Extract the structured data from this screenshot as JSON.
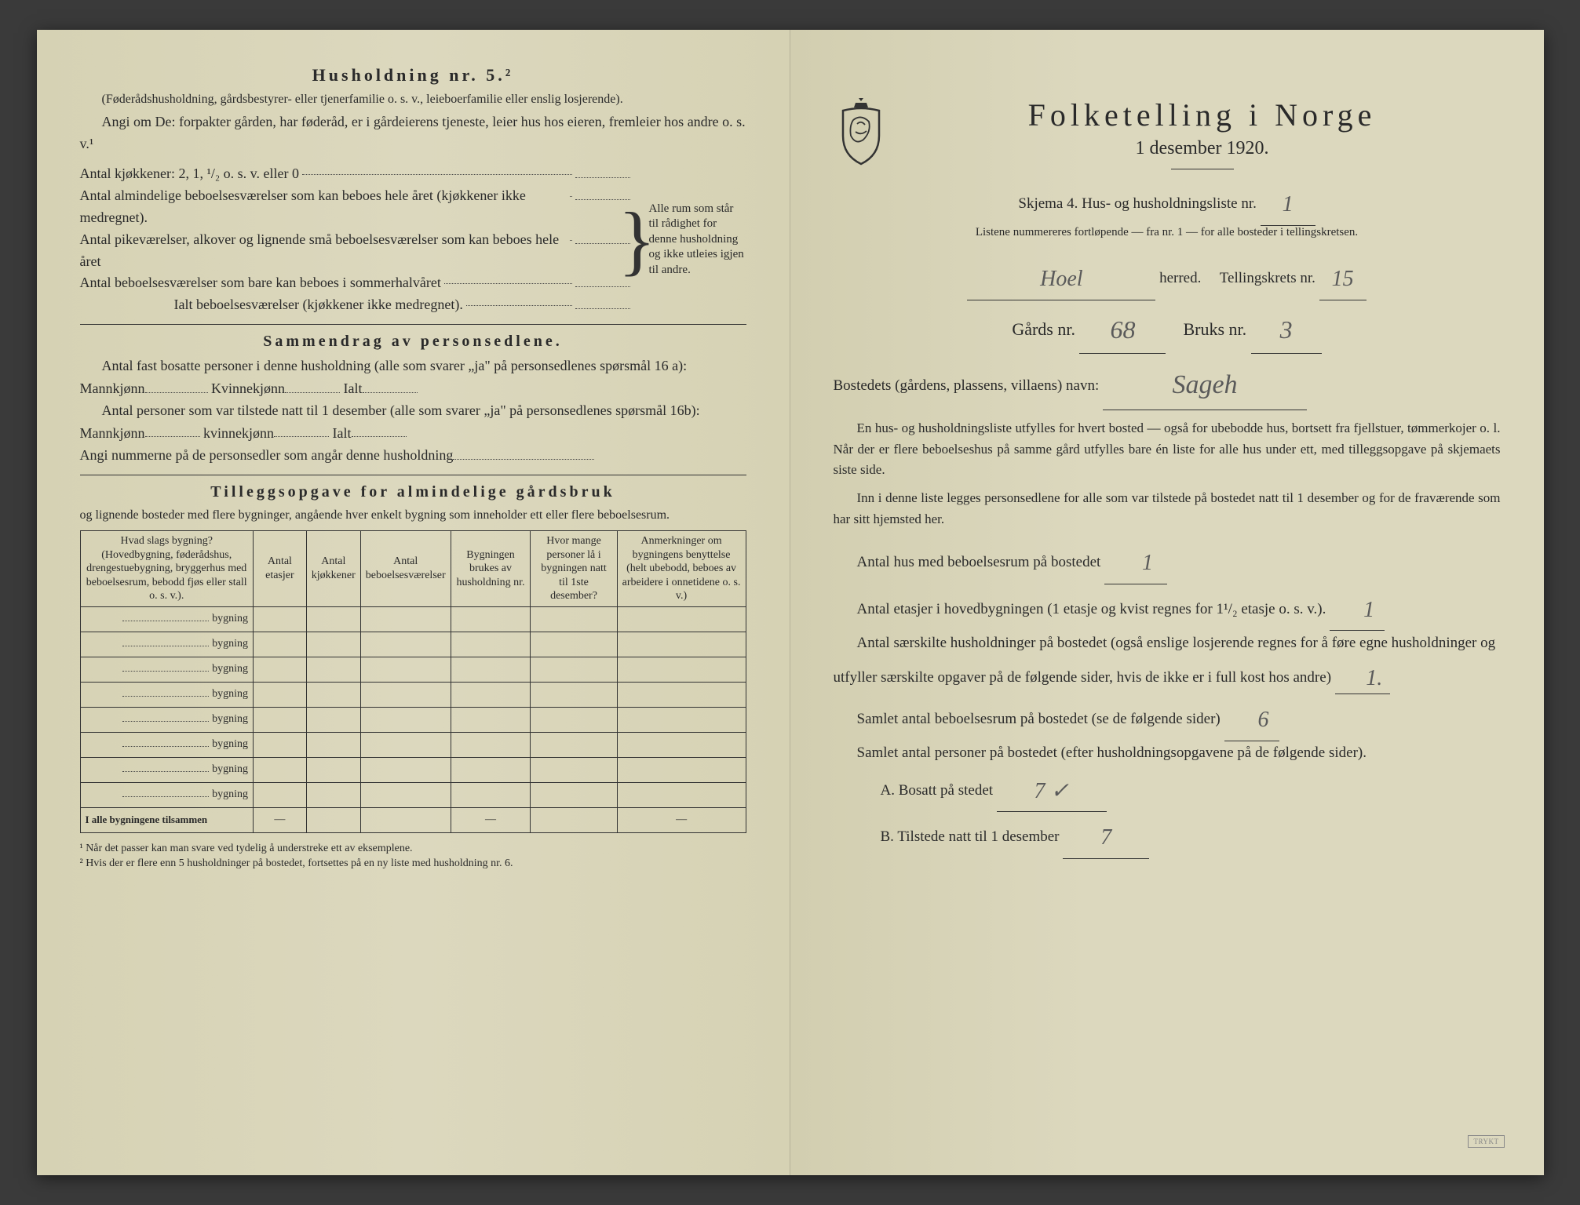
{
  "left": {
    "heading": "Husholdning nr. 5.²",
    "intro1": "(Føderådshusholdning, gårdsbestyrer- eller tjenerfamilie o. s. v., leieboerfamilie eller enslig losjerende).",
    "intro2": "Angi om De: forpakter gården, har føderåd, er i gårdeierens tjeneste, leier hus hos eieren, fremleier hos andre o. s. v.¹",
    "kitchens_label": "Antal kjøkkener: 2, 1, ¹/₂ o. s. v. eller 0",
    "rooms1": "Antal almindelige beboelsesværelser som kan beboes hele året (kjøkkener ikke medregnet).",
    "rooms2": "Antal pikeværelser, alkover og lignende små beboelsesværelser som kan beboes hele året",
    "rooms3": "Antal beboelsesværelser som bare kan beboes i sommerhalvåret",
    "rooms_total": "Ialt beboelsesværelser (kjøkkener ikke medregnet).",
    "brace_text": "Alle rum som står til rådighet for denne husholdning og ikke utleies igjen til andre.",
    "summary_heading": "Sammendrag av personsedlene.",
    "summary1a": "Antal fast bosatte personer i denne husholdning (alle som svarer „ja\" på personsedlenes spørsmål 16 a): Mannkjønn",
    "summary1b": "Kvinnekjønn",
    "summary1c": "Ialt",
    "summary2a": "Antal personer som var tilstede natt til 1 desember (alle som svarer „ja\" på personsedlenes spørsmål 16b): Mannkjønn",
    "summary2b": "kvinnekjønn",
    "summary2c": "Ialt",
    "summary3": "Angi nummerne på de personsedler som angår denne husholdning",
    "tillegg_heading": "Tilleggsopgave for almindelige gårdsbruk",
    "tillegg_sub": "og lignende bosteder med flere bygninger, angående hver enkelt bygning som inneholder ett eller flere beboelsesrum.",
    "th1": "Hvad slags bygning?\n(Hovedbygning, føderådshus, drengestuebygning, bryggerhus med beboelsesrum, bebodd fjøs eller stall o. s. v.).",
    "th2": "Antal etasjer",
    "th3": "Antal kjøkkener",
    "th4": "Antal beboelsesværelser",
    "th5": "Bygningen brukes av husholdning nr.",
    "th6": "Hvor mange personer lå i bygningen natt til 1ste desember?",
    "th7": "Anmerkninger om bygningens benyttelse (helt ubebodd, beboes av arbeidere i onnetidene o. s. v.)",
    "row_label": "bygning",
    "total_row": "I alle bygningene tilsammen",
    "fn1": "¹ Når det passer kan man svare ved tydelig å understreke ett av eksemplene.",
    "fn2": "² Hvis der er flere enn 5 husholdninger på bostedet, fortsettes på en ny liste med husholdning nr. 6."
  },
  "right": {
    "title": "Folketelling i Norge",
    "subtitle": "1 desember 1920.",
    "skjema": "Skjema 4.  Hus- og husholdningsliste nr.",
    "skjema_val": "1",
    "listene": "Listene nummereres fortløpende — fra nr. 1 — for alle bosteder i tellingskretsen.",
    "herred_val": "Hoel",
    "herred_lbl": "herred.",
    "krets_lbl": "Tellingskrets nr.",
    "krets_val": "15",
    "gards_lbl": "Gårds nr.",
    "gards_val": "68",
    "bruks_lbl": "Bruks nr.",
    "bruks_val": "3",
    "bosted_lbl": "Bostedets (gårdens, plassens, villaens) navn:",
    "bosted_val": "Sageh",
    "para1": "En hus- og husholdningsliste utfylles for hvert bosted — også for ubebodde hus, bortsett fra fjellstuer, tømmerkojer o. l. Når der er flere beboelseshus på samme gård utfylles bare én liste for alle hus under ett, med tilleggsopgave på skjemaets siste side.",
    "para2": "Inn i denne liste legges personsedlene for alle som var tilstede på bostedet natt til 1 desember og for de fraværende som har sitt hjemsted her.",
    "q1": "Antal hus med beboelsesrum på bostedet",
    "q1_val": "1",
    "q2a": "Antal etasjer i hovedbygningen (1 etasje og kvist regnes for 1¹/₂ etasje o. s. v.).",
    "q2_val": "1",
    "q3": "Antal særskilte husholdninger på bostedet (også enslige losjerende regnes for å føre egne husholdninger og utfyller særskilte opgaver på de følgende sider, hvis de ikke er i full kost hos andre)",
    "q3_val": "1.",
    "q4": "Samlet antal beboelsesrum på bostedet (se de følgende sider)",
    "q4_val": "6",
    "q5": "Samlet antal personer på bostedet (efter husholdningsopgavene på de følgende sider).",
    "qA": "A.  Bosatt på stedet",
    "qA_val": "7 ✓",
    "qB": "B.  Tilstede natt til 1 desember",
    "qB_val": "7"
  }
}
